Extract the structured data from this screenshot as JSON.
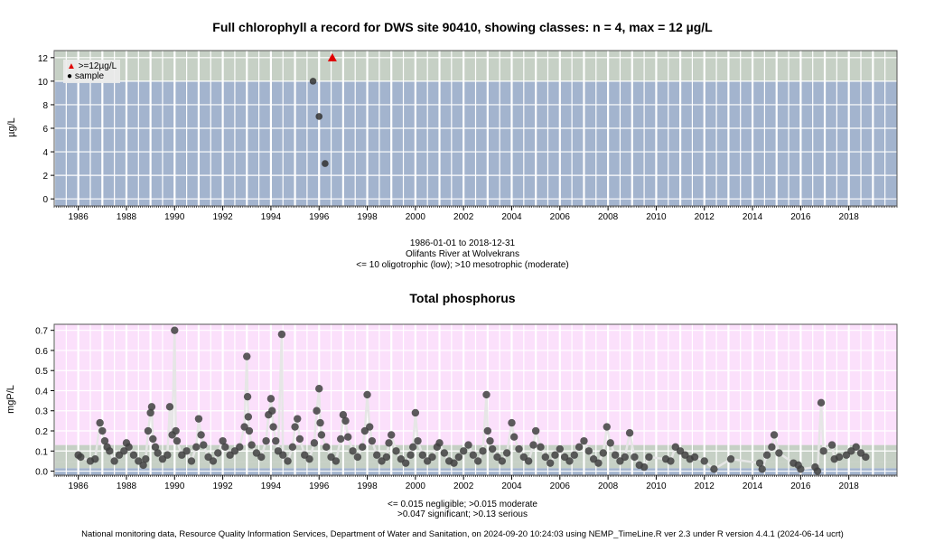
{
  "chart_data": [
    {
      "type": "scatter",
      "title": "Full chlorophyll a record for DWS site 90410, showing classes: n = 4, max = 12 µg/L",
      "ylabel": "µg/L",
      "xlim": [
        "1985-01-01",
        "2019-12-31"
      ],
      "ylim": [
        -0.6,
        12.6
      ],
      "x_ticks": [
        "1986",
        "1988",
        "1990",
        "1992",
        "1994",
        "1996",
        "1998",
        "2000",
        "2002",
        "2004",
        "2006",
        "2008",
        "2010",
        "2012",
        "2014",
        "2016",
        "2018"
      ],
      "y_ticks": [
        0,
        2,
        4,
        6,
        8,
        10,
        12
      ],
      "bands": [
        {
          "from": -0.6,
          "to": 10,
          "color": "#a3b4ce",
          "label": "oligotrophic (low)"
        },
        {
          "from": 10,
          "to": 12.6,
          "color": "#c6d0c5",
          "label": "mesotrophic (moderate)"
        }
      ],
      "legend": {
        "position": "top-left",
        "items": [
          {
            "label": ">=12µg/L",
            "symbol": "triangle",
            "color": "#e00000"
          },
          {
            "label": "sample",
            "symbol": "dot",
            "color": "#000000"
          }
        ]
      },
      "series": [
        {
          "name": "sample",
          "color": "#333333",
          "points": [
            {
              "x": 1995.75,
              "y": 10
            },
            {
              "x": 1996.0,
              "y": 7
            },
            {
              "x": 1996.25,
              "y": 3
            }
          ]
        },
        {
          "name": ">=12µg/L",
          "color": "#e00000",
          "points": [
            {
              "x": 1996.55,
              "y": 12
            }
          ]
        }
      ],
      "caption": [
        "1986-01-01 to 2018-12-31",
        "Olifants River at Wolvekrans",
        "<= 10 oligotrophic (low); >10 mesotrophic (moderate)"
      ]
    },
    {
      "type": "scatter",
      "title": "Total phosphorus",
      "ylabel": "mgP/L",
      "xlim": [
        "1985-01-01",
        "2019-12-31"
      ],
      "ylim": [
        -0.02,
        0.73
      ],
      "x_ticks": [
        "1986",
        "1988",
        "1990",
        "1992",
        "1994",
        "1996",
        "1998",
        "2000",
        "2002",
        "2004",
        "2006",
        "2008",
        "2010",
        "2012",
        "2014",
        "2016",
        "2018"
      ],
      "y_ticks": [
        0.0,
        0.1,
        0.2,
        0.3,
        0.4,
        0.5,
        0.6,
        0.7
      ],
      "bands": [
        {
          "from": -0.02,
          "to": 0.015,
          "color": "#a3b4ce",
          "label": "negligible"
        },
        {
          "from": 0.015,
          "to": 0.047,
          "color": "#c6d0c5",
          "label": "moderate"
        },
        {
          "from": 0.047,
          "to": 0.13,
          "color": "#c6d0c5",
          "label": "significant"
        },
        {
          "from": 0.13,
          "to": 0.73,
          "color": "#fbe0fb",
          "label": "serious"
        }
      ],
      "series": [
        {
          "name": "sample",
          "color": "#404040",
          "points": [
            {
              "x": 1986.0,
              "y": 0.08
            },
            {
              "x": 1986.1,
              "y": 0.07
            },
            {
              "x": 1986.5,
              "y": 0.05
            },
            {
              "x": 1986.7,
              "y": 0.06
            },
            {
              "x": 1986.9,
              "y": 0.24
            },
            {
              "x": 1987.0,
              "y": 0.2
            },
            {
              "x": 1987.1,
              "y": 0.15
            },
            {
              "x": 1987.2,
              "y": 0.12
            },
            {
              "x": 1987.3,
              "y": 0.1
            },
            {
              "x": 1987.5,
              "y": 0.05
            },
            {
              "x": 1987.7,
              "y": 0.08
            },
            {
              "x": 1987.9,
              "y": 0.1
            },
            {
              "x": 1988.0,
              "y": 0.14
            },
            {
              "x": 1988.1,
              "y": 0.12
            },
            {
              "x": 1988.3,
              "y": 0.08
            },
            {
              "x": 1988.5,
              "y": 0.05
            },
            {
              "x": 1988.7,
              "y": 0.03
            },
            {
              "x": 1988.8,
              "y": 0.06
            },
            {
              "x": 1988.9,
              "y": 0.2
            },
            {
              "x": 1989.0,
              "y": 0.29
            },
            {
              "x": 1989.05,
              "y": 0.32
            },
            {
              "x": 1989.1,
              "y": 0.16
            },
            {
              "x": 1989.2,
              "y": 0.12
            },
            {
              "x": 1989.3,
              "y": 0.09
            },
            {
              "x": 1989.5,
              "y": 0.06
            },
            {
              "x": 1989.7,
              "y": 0.08
            },
            {
              "x": 1989.8,
              "y": 0.32
            },
            {
              "x": 1989.9,
              "y": 0.18
            },
            {
              "x": 1990.0,
              "y": 0.7
            },
            {
              "x": 1990.05,
              "y": 0.2
            },
            {
              "x": 1990.1,
              "y": 0.15
            },
            {
              "x": 1990.3,
              "y": 0.08
            },
            {
              "x": 1990.5,
              "y": 0.1
            },
            {
              "x": 1990.7,
              "y": 0.05
            },
            {
              "x": 1990.9,
              "y": 0.12
            },
            {
              "x": 1991.0,
              "y": 0.26
            },
            {
              "x": 1991.1,
              "y": 0.18
            },
            {
              "x": 1991.2,
              "y": 0.13
            },
            {
              "x": 1991.4,
              "y": 0.07
            },
            {
              "x": 1991.6,
              "y": 0.05
            },
            {
              "x": 1991.8,
              "y": 0.09
            },
            {
              "x": 1992.0,
              "y": 0.15
            },
            {
              "x": 1992.1,
              "y": 0.12
            },
            {
              "x": 1992.3,
              "y": 0.08
            },
            {
              "x": 1992.5,
              "y": 0.1
            },
            {
              "x": 1992.7,
              "y": 0.12
            },
            {
              "x": 1992.9,
              "y": 0.22
            },
            {
              "x": 1993.0,
              "y": 0.57
            },
            {
              "x": 1993.03,
              "y": 0.37
            },
            {
              "x": 1993.06,
              "y": 0.27
            },
            {
              "x": 1993.1,
              "y": 0.2
            },
            {
              "x": 1993.2,
              "y": 0.13
            },
            {
              "x": 1993.4,
              "y": 0.09
            },
            {
              "x": 1993.6,
              "y": 0.07
            },
            {
              "x": 1993.8,
              "y": 0.15
            },
            {
              "x": 1993.9,
              "y": 0.28
            },
            {
              "x": 1994.0,
              "y": 0.36
            },
            {
              "x": 1994.05,
              "y": 0.3
            },
            {
              "x": 1994.1,
              "y": 0.22
            },
            {
              "x": 1994.2,
              "y": 0.15
            },
            {
              "x": 1994.3,
              "y": 0.1
            },
            {
              "x": 1994.45,
              "y": 0.68
            },
            {
              "x": 1994.5,
              "y": 0.08
            },
            {
              "x": 1994.7,
              "y": 0.05
            },
            {
              "x": 1994.9,
              "y": 0.12
            },
            {
              "x": 1995.0,
              "y": 0.22
            },
            {
              "x": 1995.1,
              "y": 0.26
            },
            {
              "x": 1995.2,
              "y": 0.16
            },
            {
              "x": 1995.4,
              "y": 0.08
            },
            {
              "x": 1995.6,
              "y": 0.06
            },
            {
              "x": 1995.8,
              "y": 0.14
            },
            {
              "x": 1995.9,
              "y": 0.3
            },
            {
              "x": 1996.0,
              "y": 0.41
            },
            {
              "x": 1996.05,
              "y": 0.24
            },
            {
              "x": 1996.1,
              "y": 0.18
            },
            {
              "x": 1996.3,
              "y": 0.12
            },
            {
              "x": 1996.5,
              "y": 0.07
            },
            {
              "x": 1996.7,
              "y": 0.05
            },
            {
              "x": 1996.9,
              "y": 0.16
            },
            {
              "x": 1997.0,
              "y": 0.28
            },
            {
              "x": 1997.1,
              "y": 0.25
            },
            {
              "x": 1997.2,
              "y": 0.17
            },
            {
              "x": 1997.4,
              "y": 0.1
            },
            {
              "x": 1997.6,
              "y": 0.07
            },
            {
              "x": 1997.8,
              "y": 0.12
            },
            {
              "x": 1997.9,
              "y": 0.2
            },
            {
              "x": 1998.0,
              "y": 0.38
            },
            {
              "x": 1998.1,
              "y": 0.22
            },
            {
              "x": 1998.2,
              "y": 0.15
            },
            {
              "x": 1998.4,
              "y": 0.08
            },
            {
              "x": 1998.6,
              "y": 0.05
            },
            {
              "x": 1998.8,
              "y": 0.07
            },
            {
              "x": 1998.9,
              "y": 0.14
            },
            {
              "x": 1999.0,
              "y": 0.18
            },
            {
              "x": 1999.2,
              "y": 0.1
            },
            {
              "x": 1999.4,
              "y": 0.06
            },
            {
              "x": 1999.6,
              "y": 0.04
            },
            {
              "x": 1999.8,
              "y": 0.08
            },
            {
              "x": 1999.9,
              "y": 0.12
            },
            {
              "x": 2000.0,
              "y": 0.29
            },
            {
              "x": 2000.1,
              "y": 0.15
            },
            {
              "x": 2000.3,
              "y": 0.08
            },
            {
              "x": 2000.5,
              "y": 0.05
            },
            {
              "x": 2000.7,
              "y": 0.07
            },
            {
              "x": 2000.9,
              "y": 0.12
            },
            {
              "x": 2001.0,
              "y": 0.14
            },
            {
              "x": 2001.2,
              "y": 0.09
            },
            {
              "x": 2001.4,
              "y": 0.05
            },
            {
              "x": 2001.6,
              "y": 0.04
            },
            {
              "x": 2001.8,
              "y": 0.07
            },
            {
              "x": 2002.0,
              "y": 0.1
            },
            {
              "x": 2002.2,
              "y": 0.13
            },
            {
              "x": 2002.4,
              "y": 0.08
            },
            {
              "x": 2002.6,
              "y": 0.05
            },
            {
              "x": 2002.8,
              "y": 0.1
            },
            {
              "x": 2002.95,
              "y": 0.38
            },
            {
              "x": 2003.0,
              "y": 0.2
            },
            {
              "x": 2003.1,
              "y": 0.15
            },
            {
              "x": 2003.2,
              "y": 0.11
            },
            {
              "x": 2003.4,
              "y": 0.07
            },
            {
              "x": 2003.6,
              "y": 0.05
            },
            {
              "x": 2003.8,
              "y": 0.09
            },
            {
              "x": 2004.0,
              "y": 0.24
            },
            {
              "x": 2004.1,
              "y": 0.17
            },
            {
              "x": 2004.3,
              "y": 0.11
            },
            {
              "x": 2004.5,
              "y": 0.07
            },
            {
              "x": 2004.7,
              "y": 0.05
            },
            {
              "x": 2004.9,
              "y": 0.13
            },
            {
              "x": 2005.0,
              "y": 0.2
            },
            {
              "x": 2005.2,
              "y": 0.12
            },
            {
              "x": 2005.4,
              "y": 0.07
            },
            {
              "x": 2005.6,
              "y": 0.04
            },
            {
              "x": 2005.8,
              "y": 0.08
            },
            {
              "x": 2006.0,
              "y": 0.11
            },
            {
              "x": 2006.2,
              "y": 0.07
            },
            {
              "x": 2006.4,
              "y": 0.05
            },
            {
              "x": 2006.6,
              "y": 0.08
            },
            {
              "x": 2006.8,
              "y": 0.12
            },
            {
              "x": 2007.0,
              "y": 0.15
            },
            {
              "x": 2007.2,
              "y": 0.1
            },
            {
              "x": 2007.4,
              "y": 0.06
            },
            {
              "x": 2007.6,
              "y": 0.04
            },
            {
              "x": 2007.8,
              "y": 0.09
            },
            {
              "x": 2007.95,
              "y": 0.22
            },
            {
              "x": 2008.1,
              "y": 0.14
            },
            {
              "x": 2008.3,
              "y": 0.08
            },
            {
              "x": 2008.5,
              "y": 0.05
            },
            {
              "x": 2008.7,
              "y": 0.07
            },
            {
              "x": 2008.9,
              "y": 0.19
            },
            {
              "x": 2009.1,
              "y": 0.07
            },
            {
              "x": 2009.3,
              "y": 0.03
            },
            {
              "x": 2009.5,
              "y": 0.02
            },
            {
              "x": 2009.7,
              "y": 0.07
            },
            {
              "x": 2010.4,
              "y": 0.06
            },
            {
              "x": 2010.6,
              "y": 0.05
            },
            {
              "x": 2010.8,
              "y": 0.12
            },
            {
              "x": 2011.0,
              "y": 0.1
            },
            {
              "x": 2011.2,
              "y": 0.08
            },
            {
              "x": 2011.4,
              "y": 0.06
            },
            {
              "x": 2011.6,
              "y": 0.07
            },
            {
              "x": 2012.0,
              "y": 0.05
            },
            {
              "x": 2012.4,
              "y": 0.01
            },
            {
              "x": 2013.1,
              "y": 0.06
            },
            {
              "x": 2014.3,
              "y": 0.04
            },
            {
              "x": 2014.4,
              "y": 0.01
            },
            {
              "x": 2014.6,
              "y": 0.08
            },
            {
              "x": 2014.8,
              "y": 0.12
            },
            {
              "x": 2014.9,
              "y": 0.18
            },
            {
              "x": 2015.1,
              "y": 0.09
            },
            {
              "x": 2015.7,
              "y": 0.04
            },
            {
              "x": 2015.9,
              "y": 0.03
            },
            {
              "x": 2016.0,
              "y": 0.01
            },
            {
              "x": 2016.6,
              "y": 0.02
            },
            {
              "x": 2016.7,
              "y": 0.0
            },
            {
              "x": 2016.85,
              "y": 0.34
            },
            {
              "x": 2016.95,
              "y": 0.1
            },
            {
              "x": 2017.3,
              "y": 0.13
            },
            {
              "x": 2017.4,
              "y": 0.06
            },
            {
              "x": 2017.6,
              "y": 0.07
            },
            {
              "x": 2017.9,
              "y": 0.08
            },
            {
              "x": 2018.1,
              "y": 0.1
            },
            {
              "x": 2018.3,
              "y": 0.12
            },
            {
              "x": 2018.5,
              "y": 0.09
            },
            {
              "x": 2018.7,
              "y": 0.07
            }
          ]
        }
      ],
      "caption": [
        "<= 0.015 negligible; >0.015 moderate",
        ">0.047 significant; >0.13 serious"
      ]
    }
  ],
  "footer": "National monitoring data, Resource Quality Information Services, Department of Water and Sanitation, on 2024-09-20 10:24:03 using NEMP_TimeLine.R ver 2.3 under R version 4.4.1 (2024-06-14 ucrt)"
}
